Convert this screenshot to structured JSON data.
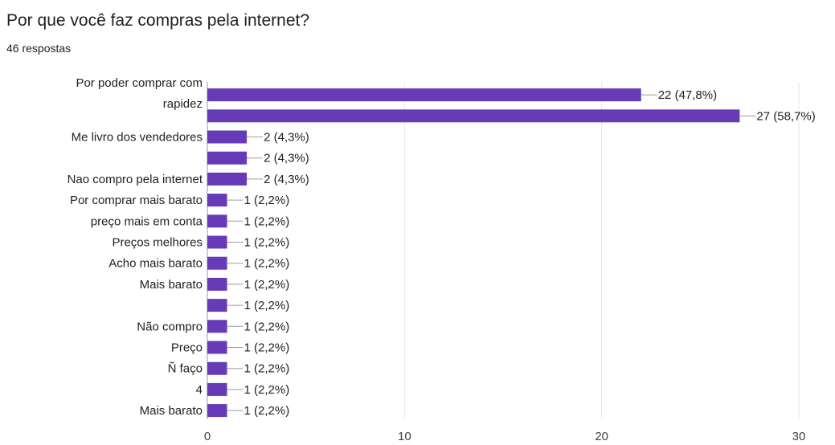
{
  "header": {
    "title": "Por que você faz compras pela internet?",
    "responses": "46 respostas"
  },
  "colors": {
    "bar": "#673ab7",
    "grid": "#e6e6e6",
    "axis": "#9e9e9e"
  },
  "chart_data": {
    "type": "bar",
    "orientation": "horizontal",
    "title": "Por que você faz compras pela internet?",
    "xlim": [
      0,
      30
    ],
    "xticks": [
      0,
      10,
      20,
      30
    ],
    "grid": true,
    "legend": "none",
    "bars": [
      {
        "label": "Por poder comprar com rapidez",
        "value": 22,
        "data_label": "22 (47,8%)"
      },
      {
        "label": "",
        "value": 27,
        "data_label": "27 (58,7%)"
      },
      {
        "label": "Me livro dos vendedores",
        "value": 2,
        "data_label": "2 (4,3%)"
      },
      {
        "label": "",
        "value": 2,
        "data_label": "2 (4,3%)"
      },
      {
        "label": "Nao compro pela internet",
        "value": 2,
        "data_label": "2 (4,3%)"
      },
      {
        "label": "Por comprar mais barato",
        "value": 1,
        "data_label": "1 (2,2%)"
      },
      {
        "label": "preço mais em conta",
        "value": 1,
        "data_label": "1 (2,2%)"
      },
      {
        "label": "Preços melhores",
        "value": 1,
        "data_label": "1 (2,2%)"
      },
      {
        "label": "Acho mais barato",
        "value": 1,
        "data_label": "1 (2,2%)"
      },
      {
        "label": "Mais barato",
        "value": 1,
        "data_label": "1 (2,2%)"
      },
      {
        "label": "",
        "value": 1,
        "data_label": "1 (2,2%)"
      },
      {
        "label": "Não compro",
        "value": 1,
        "data_label": "1 (2,2%)"
      },
      {
        "label": "Preço",
        "value": 1,
        "data_label": "1 (2,2%)"
      },
      {
        "label": "Ñ faço",
        "value": 1,
        "data_label": "1 (2,2%)"
      },
      {
        "label": "4",
        "value": 1,
        "data_label": "1 (2,2%)"
      },
      {
        "label": "Mais barato",
        "value": 1,
        "data_label": "1 (2,2%)"
      }
    ]
  }
}
